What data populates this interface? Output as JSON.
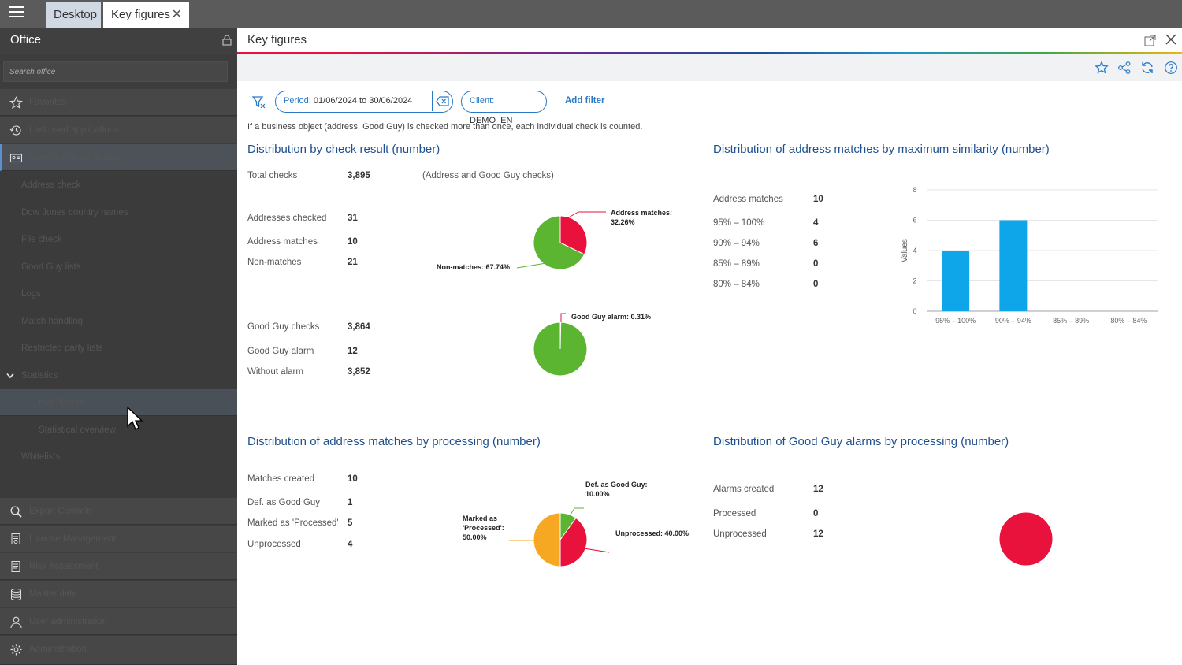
{
  "tabs": {
    "desktop": "Desktop",
    "key_figures": "Key figures"
  },
  "sidebar": {
    "title": "Office",
    "search_placeholder": "Search office",
    "top_items": [
      {
        "label": "Favorites",
        "icon": "star-icon"
      },
      {
        "label": "Last used applications",
        "icon": "history-icon"
      },
      {
        "label": "Compliance Screening",
        "icon": "id-card-icon"
      }
    ],
    "sub_items": [
      "Address check",
      "Dow Jones country names",
      "File check",
      "Good Guy lists",
      "Logs",
      "Match handling",
      "Restricted party lists",
      "Statistics"
    ],
    "statistics_children": [
      "Key figures",
      "Statistical overview"
    ],
    "after_items": [
      "Whitelists"
    ],
    "bottom_items": [
      {
        "label": "Export Controls",
        "icon": "magnifier-icon"
      },
      {
        "label": "License Management",
        "icon": "document-stamp-icon"
      },
      {
        "label": "Risk Assessment",
        "icon": "document-risk-icon"
      },
      {
        "label": "Master data",
        "icon": "database-icon"
      },
      {
        "label": "User administration",
        "icon": "user-icon"
      },
      {
        "label": "Administration",
        "icon": "gear-icon"
      }
    ]
  },
  "content": {
    "title": "Key figures",
    "filters": {
      "period_key": "Period:",
      "period_value": "01/06/2024 to 30/06/2024",
      "client_key": "Client:",
      "client_value": "DEMO_EN",
      "add_filter": "Add filter"
    },
    "note": "If a business object (address, Good Guy) is checked more than once, each individual check is counted."
  },
  "check_result": {
    "title": "Distribution by check result (number)",
    "total_label": "Total checks",
    "total_value": "3,895",
    "total_note": "(Address and Good Guy checks)",
    "rows1": [
      {
        "label": "Addresses checked",
        "value": "31"
      },
      {
        "label": "Address matches",
        "value": "10"
      },
      {
        "label": "Non-matches",
        "value": "21"
      }
    ],
    "rows2": [
      {
        "label": "Good Guy checks",
        "value": "3,864"
      },
      {
        "label": "Good Guy alarm",
        "value": "12"
      },
      {
        "label": "Without alarm",
        "value": "3,852"
      }
    ],
    "pie1_labels": {
      "matches": "Address matches:",
      "matches_pct": "32.26%",
      "non": "Non-matches: 67.74%"
    },
    "pie2_labels": {
      "alarm": "Good Guy alarm: 0.31%"
    }
  },
  "similarity": {
    "title": "Distribution of address matches by maximum similarity (number)",
    "rows": [
      {
        "label": "Address matches",
        "value": "10"
      },
      {
        "label": "95% – 100%",
        "value": "4"
      },
      {
        "label": "90% – 94%",
        "value": "6"
      },
      {
        "label": "85% – 89%",
        "value": "0"
      },
      {
        "label": "80% – 84%",
        "value": "0"
      }
    ]
  },
  "processing": {
    "title": "Distribution of address matches by processing (number)",
    "rows": [
      {
        "label": "Matches created",
        "value": "10"
      },
      {
        "label": "Def. as Good Guy",
        "value": "1"
      },
      {
        "label": "Marked as 'Processed'",
        "value": "5"
      },
      {
        "label": "Unprocessed",
        "value": "4"
      }
    ],
    "pie_labels": {
      "def1": "Def. as Good Guy:",
      "def2": "10.00%",
      "mark1": "Marked as",
      "mark2": "'Processed':",
      "mark3": "50.00%",
      "unproc": "Unprocessed: 40.00%"
    }
  },
  "goodguy": {
    "title": "Distribution of Good Guy alarms by processing (number)",
    "rows": [
      {
        "label": "Alarms created",
        "value": "12"
      },
      {
        "label": "Processed",
        "value": "0"
      },
      {
        "label": "Unprocessed",
        "value": "12"
      }
    ]
  },
  "colors": {
    "green": "#5cb531",
    "red": "#e8123c",
    "orange": "#f7a823",
    "blue": "#0ea5e9",
    "title_blue": "#1f4f8e"
  },
  "chart_data": [
    {
      "type": "pie",
      "categories": [
        "Address matches",
        "Non-matches"
      ],
      "values": [
        32.26,
        67.74
      ]
    },
    {
      "type": "pie",
      "categories": [
        "Good Guy alarm",
        "Without alarm"
      ],
      "values": [
        0.31,
        99.69
      ]
    },
    {
      "type": "bar",
      "categories": [
        "95% – 100%",
        "90% – 94%",
        "85% – 89%",
        "80% – 84%"
      ],
      "values": [
        4,
        6,
        0,
        0
      ],
      "ylabel": "Values",
      "ylim": [
        0,
        8
      ],
      "yticks": [
        0,
        2,
        4,
        6,
        8
      ],
      "grid": true
    },
    {
      "type": "pie",
      "categories": [
        "Def. as Good Guy",
        "Unprocessed",
        "Marked as 'Processed'"
      ],
      "values": [
        10.0,
        40.0,
        50.0
      ]
    },
    {
      "type": "pie",
      "categories": [
        "Unprocessed"
      ],
      "values": [
        100
      ]
    }
  ]
}
